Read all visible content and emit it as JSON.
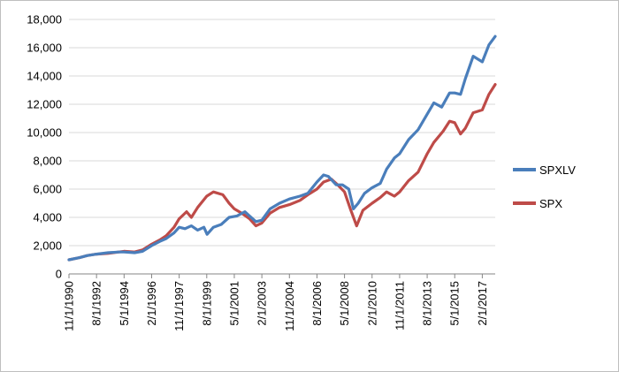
{
  "chart_data": {
    "type": "line",
    "title": "",
    "xlabel": "",
    "ylabel": "",
    "ylim": [
      0,
      18000
    ],
    "y_ticks": [
      "0",
      "2,000",
      "4,000",
      "6,000",
      "8,000",
      "10,000",
      "12,000",
      "14,000",
      "16,000",
      "18,000"
    ],
    "y_tick_values": [
      0,
      2000,
      4000,
      6000,
      8000,
      10000,
      12000,
      14000,
      16000,
      18000
    ],
    "x_ticks": [
      "11/1/1990",
      "8/1/1992",
      "5/1/1994",
      "2/1/1996",
      "11/1/1997",
      "8/1/1999",
      "5/1/2001",
      "2/1/2003",
      "11/1/2004",
      "8/1/2006",
      "5/1/2008",
      "2/1/2010",
      "11/1/2011",
      "8/1/2013",
      "5/1/2015",
      "2/1/2017"
    ],
    "x_tick_values": [
      1990.83,
      1992.58,
      1994.33,
      1996.08,
      1997.83,
      1999.58,
      2001.33,
      2003.08,
      2004.83,
      2006.58,
      2008.33,
      2010.08,
      2011.83,
      2013.58,
      2015.33,
      2017.08
    ],
    "xlim": [
      1990.83,
      2017.9
    ],
    "grid": "horizontal",
    "legend_position": "right",
    "series": [
      {
        "name": "SPXLV",
        "color": "#4a7ebb",
        "x": [
          1990.83,
          1991.5,
          1992.0,
          1992.58,
          1993.3,
          1994.0,
          1994.33,
          1995.0,
          1995.5,
          1996.08,
          1996.6,
          1997.0,
          1997.5,
          1997.83,
          1998.2,
          1998.6,
          1999.0,
          1999.4,
          1999.6,
          2000.0,
          2000.5,
          2001.0,
          2001.5,
          2002.0,
          2002.3,
          2002.7,
          2003.08,
          2003.6,
          2004.2,
          2004.83,
          2005.5,
          2006.0,
          2006.58,
          2007.0,
          2007.3,
          2007.8,
          2008.2,
          2008.6,
          2008.9,
          2009.2,
          2009.6,
          2010.08,
          2010.6,
          2011.0,
          2011.5,
          2011.83,
          2012.4,
          2013.0,
          2013.58,
          2014.0,
          2014.5,
          2015.0,
          2015.33,
          2015.7,
          2016.0,
          2016.5,
          2017.08,
          2017.5,
          2017.9
        ],
        "values": [
          1000,
          1150,
          1300,
          1400,
          1500,
          1550,
          1550,
          1500,
          1600,
          2000,
          2300,
          2500,
          2900,
          3300,
          3200,
          3400,
          3100,
          3300,
          2800,
          3300,
          3500,
          4000,
          4100,
          4400,
          4100,
          3700,
          3800,
          4600,
          5000,
          5300,
          5500,
          5700,
          6500,
          7000,
          6900,
          6300,
          6300,
          6000,
          4600,
          5000,
          5700,
          6100,
          6400,
          7400,
          8200,
          8500,
          9500,
          10200,
          11300,
          12100,
          11800,
          12800,
          12800,
          12700,
          13800,
          15400,
          15000,
          16200,
          16800
        ]
      },
      {
        "name": "SPX",
        "color": "#be4b48",
        "x": [
          1990.83,
          1991.5,
          1992.0,
          1992.58,
          1993.3,
          1994.0,
          1994.33,
          1995.0,
          1995.5,
          1996.08,
          1996.6,
          1997.0,
          1997.5,
          1997.83,
          1998.3,
          1998.6,
          1999.0,
          1999.58,
          2000.0,
          2000.6,
          2001.0,
          2001.33,
          2001.8,
          2002.3,
          2002.7,
          2003.08,
          2003.6,
          2004.2,
          2004.83,
          2005.5,
          2006.0,
          2006.58,
          2007.0,
          2007.5,
          2007.9,
          2008.33,
          2008.7,
          2009.1,
          2009.5,
          2010.08,
          2010.6,
          2011.0,
          2011.5,
          2011.83,
          2012.4,
          2013.0,
          2013.58,
          2014.0,
          2014.6,
          2015.0,
          2015.33,
          2015.7,
          2016.0,
          2016.5,
          2017.08,
          2017.5,
          2017.9
        ],
        "values": [
          1000,
          1150,
          1300,
          1400,
          1450,
          1550,
          1600,
          1550,
          1700,
          2100,
          2400,
          2700,
          3300,
          3900,
          4400,
          4000,
          4700,
          5500,
          5800,
          5600,
          5000,
          4600,
          4300,
          3900,
          3400,
          3600,
          4300,
          4700,
          4900,
          5200,
          5600,
          6000,
          6500,
          6700,
          6300,
          5800,
          4600,
          3400,
          4500,
          5000,
          5400,
          5800,
          5500,
          5800,
          6600,
          7200,
          8500,
          9300,
          10100,
          10800,
          10700,
          9900,
          10300,
          11400,
          11600,
          12700,
          13400
        ]
      }
    ]
  }
}
